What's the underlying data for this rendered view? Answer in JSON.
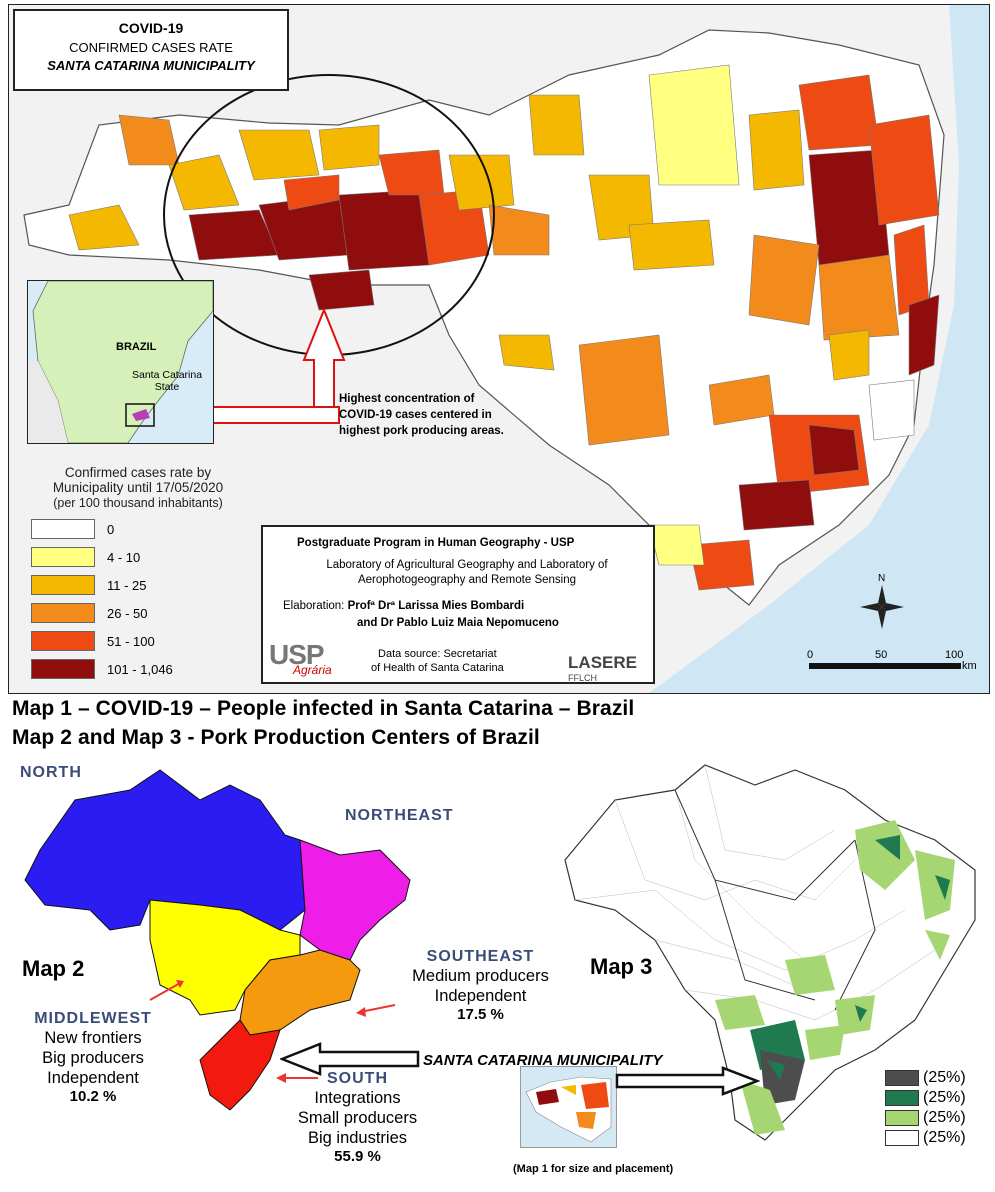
{
  "map1": {
    "title": "COVID-19",
    "subtitle": "CONFIRMED CASES RATE",
    "region": "SANTA CATARINA MUNICIPALITY",
    "inset": {
      "country": "BRAZIL",
      "state_line1": "Santa Catarina",
      "state_line2": "State"
    },
    "annotation": [
      "Highest concentration of",
      "COVID-19 cases centered in",
      "highest pork producing areas."
    ],
    "legend": {
      "title_line1": "Confirmed cases rate by",
      "title_line2": "Municipality until 17/05/2020",
      "title_line3": "(per 100 thousand inhabitants)",
      "items": [
        {
          "label": "0",
          "color": "#ffffff"
        },
        {
          "label": "4 - 10",
          "color": "#ffff80"
        },
        {
          "label": "11 - 25",
          "color": "#f5b800"
        },
        {
          "label": "26 - 50",
          "color": "#f28a1c"
        },
        {
          "label": "51 - 100",
          "color": "#ee4a14"
        },
        {
          "label": "101 - 1,046",
          "color": "#8f0d0d"
        }
      ]
    },
    "credits": {
      "program": "Postgraduate Program in Human Geography - USP",
      "lab_line1": "Laboratory of Agricultural Geography and Laboratory of",
      "lab_line2": "Aerophotogeography and Remote Sensing",
      "elaboration_label": "Elaboration:",
      "author1": "Profª Drª Larissa Mies Bombardi",
      "author2": "and Dr Pablo Luiz Maia Nepomuceno",
      "source_line1": "Data source: Secretariat",
      "source_line2": "of Health of Santa Catarina",
      "logo_left": "USP",
      "logo_left_sub": "Agrária",
      "logo_right": "LASERE",
      "logo_right_sub": "FFLCH"
    },
    "north": "N",
    "scale": {
      "ticks": [
        "0",
        "50",
        "100"
      ],
      "unit": "km"
    }
  },
  "captions": {
    "line1": "Map 1 – COVID-19 – People infected in Santa Catarina – Brazil",
    "line2": "Map 2 and Map 3 - Pork Production Centers of Brazil"
  },
  "map2": {
    "name": "Map 2",
    "regions": {
      "north": {
        "label": "NORTH",
        "color": "#2b1cf2"
      },
      "northeast": {
        "label": "NORTHEAST",
        "color": "#ee1ee8"
      },
      "middlewest": {
        "label": "MIDDLEWEST",
        "color": "#ffff00",
        "lines": [
          "New frontiers",
          "Big producers",
          "Independent"
        ],
        "pct": "10.2 %"
      },
      "southeast": {
        "label": "SOUTHEAST",
        "color": "#f59a0e",
        "lines": [
          "Medium producers",
          "Independent"
        ],
        "pct": "17.5 %"
      },
      "south": {
        "label": "SOUTH",
        "color": "#f21a0e",
        "lines": [
          "Integrations",
          "Small producers",
          "Big industries"
        ],
        "pct": "55.9 %"
      }
    }
  },
  "map3": {
    "name": "Map 3",
    "pointer_label": "SANTA CATARINA MUNICIPALITY",
    "thumb_note": "(Map 1 for size and placement)",
    "legend": [
      {
        "label": "(25%)",
        "color": "#4d4d4d"
      },
      {
        "label": "(25%)",
        "color": "#1f7a4f"
      },
      {
        "label": "(25%)",
        "color": "#a6d672"
      },
      {
        "label": "(25%)",
        "color": "#ffffff"
      }
    ]
  }
}
